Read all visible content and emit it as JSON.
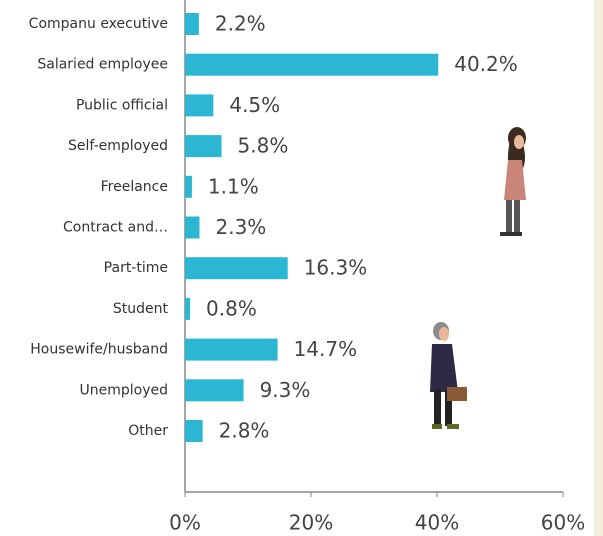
{
  "chart_data": {
    "type": "bar",
    "orientation": "horizontal",
    "categories": [
      "Companu executive",
      "Salaried employee",
      "Public official",
      "Self-employed",
      "Freelance",
      "Contract and…",
      "Part-time",
      "Student",
      "Housewife/husband",
      "Unemployed",
      "Other"
    ],
    "values": [
      2.2,
      40.2,
      4.5,
      5.8,
      1.1,
      2.3,
      16.3,
      0.8,
      14.7,
      9.3,
      2.8
    ],
    "value_labels": [
      "2.2%",
      "40.2%",
      "4.5%",
      "5.8%",
      "1.1%",
      "2.3%",
      "16.3%",
      "0.8%",
      "14.7%",
      "9.3%",
      "2.8%"
    ],
    "color": "#2bb7d3",
    "xlim": [
      0,
      60
    ],
    "xticks": [
      {
        "value": 0,
        "label": "0%"
      },
      {
        "value": 20,
        "label": "20%"
      },
      {
        "value": 40,
        "label": "40%"
      },
      {
        "value": 60,
        "label": "60%"
      }
    ],
    "grid": false
  }
}
